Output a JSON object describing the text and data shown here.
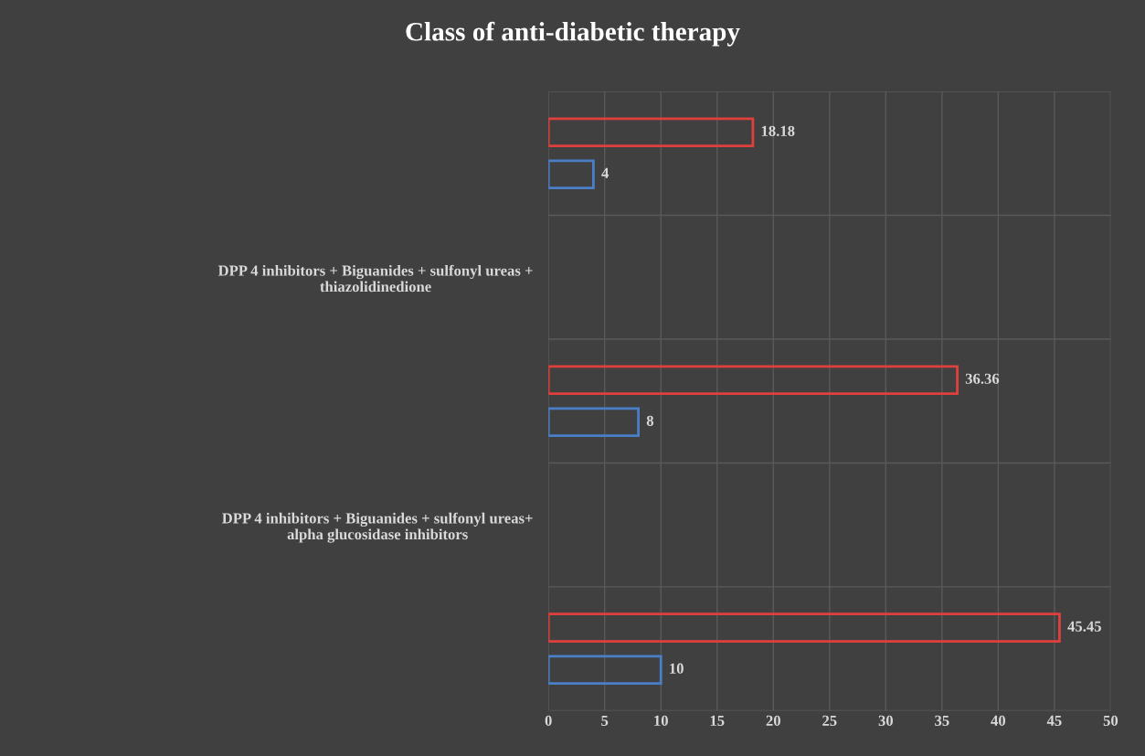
{
  "chart_data": {
    "type": "bar",
    "orientation": "horizontal",
    "title": "Class of anti-diabetic therapy",
    "categories": [
      null,
      "DPP 4 inhibitors + Biguanides + sulfonyl ureas + thiazolidinedione",
      null,
      "DPP 4 inhibitors + Biguanides + sulfonyl ureas+ alpha glucosidase inhibitors",
      null
    ],
    "series": [
      {
        "color": "#e0403c",
        "values": [
          18.18,
          null,
          36.36,
          null,
          45.45
        ]
      },
      {
        "color": "#4a7fc8",
        "values": [
          4,
          null,
          8,
          null,
          10
        ]
      }
    ],
    "xlim": [
      0,
      50
    ],
    "xticks": [
      0,
      5,
      10,
      15,
      20,
      25,
      30,
      35,
      40,
      45,
      50
    ],
    "grid": true,
    "data_labels": true
  }
}
